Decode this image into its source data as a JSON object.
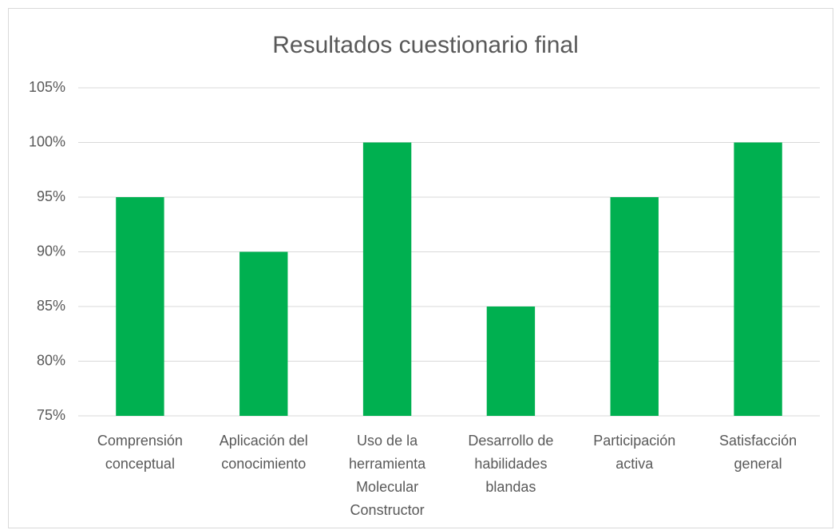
{
  "chart_data": {
    "type": "bar",
    "title": "Resultados cuestionario final",
    "categories": [
      "Comprensión conceptual",
      "Aplicación del conocimiento",
      "Uso de la herramienta Molecular Constructor",
      "Desarrollo de habilidades blandas",
      "Participación activa",
      "Satisfacción general"
    ],
    "values": [
      95,
      90,
      100,
      85,
      95,
      100
    ],
    "color": "#00b050",
    "ylim": [
      75,
      105
    ],
    "yticks": [
      {
        "value": 75,
        "label": "75%"
      },
      {
        "value": 80,
        "label": "80%"
      },
      {
        "value": 85,
        "label": "85%"
      },
      {
        "value": 90,
        "label": "90%"
      },
      {
        "value": 95,
        "label": "95%"
      },
      {
        "value": 100,
        "label": "100%"
      },
      {
        "value": 105,
        "label": "105%"
      }
    ],
    "grid": true
  }
}
